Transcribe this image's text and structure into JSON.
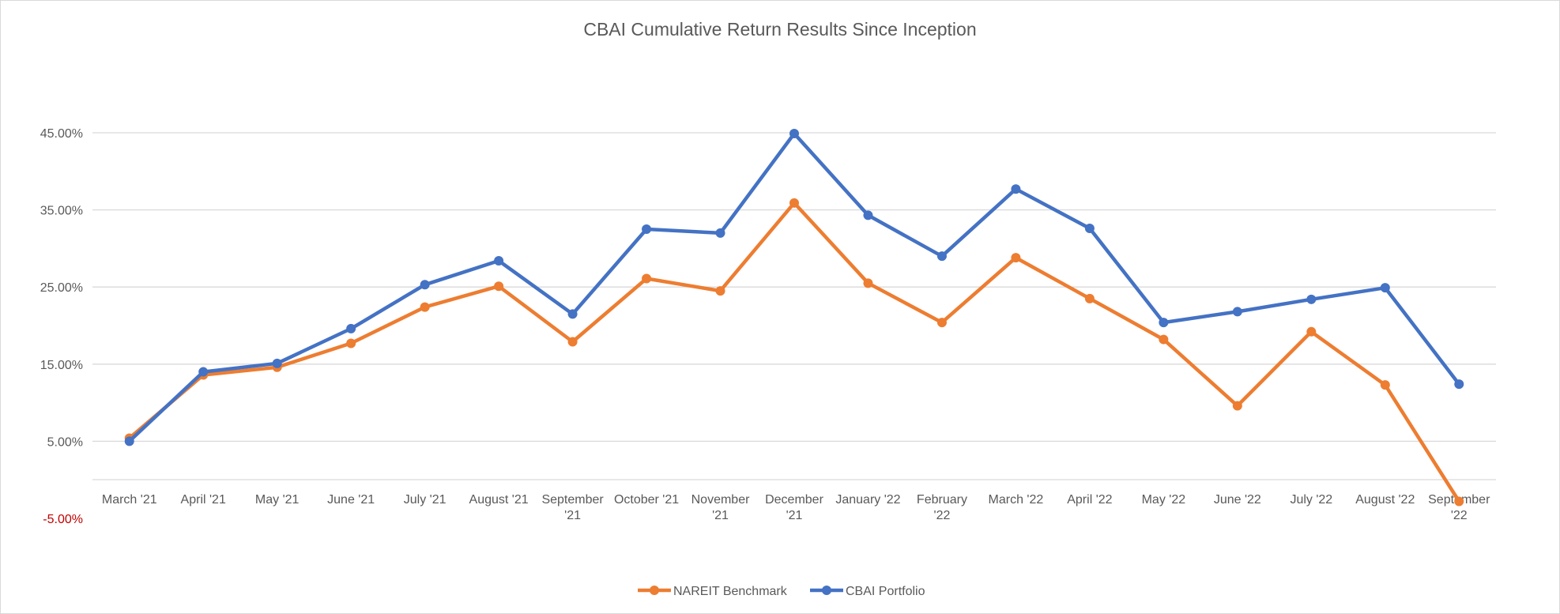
{
  "chart_data": {
    "type": "line",
    "title": "CBAI Cumulative Return Results Since Inception",
    "xlabel": "",
    "ylabel": "",
    "categories": [
      [
        "March '21"
      ],
      [
        "April '21"
      ],
      [
        "May '21"
      ],
      [
        "June '21"
      ],
      [
        "July '21"
      ],
      [
        "August '21"
      ],
      [
        "September",
        "'21"
      ],
      [
        "October '21"
      ],
      [
        "November",
        "'21"
      ],
      [
        "December",
        "'21"
      ],
      [
        "January '22"
      ],
      [
        "February",
        "'22"
      ],
      [
        "March '22"
      ],
      [
        "April '22"
      ],
      [
        "May '22"
      ],
      [
        "June '22"
      ],
      [
        "July '22"
      ],
      [
        "August '22"
      ],
      [
        "September",
        "'22"
      ]
    ],
    "yticks": [
      -5,
      5,
      15,
      25,
      35,
      45
    ],
    "ytick_labels": [
      "-5.00%",
      "5.00%",
      "15.00%",
      "25.00%",
      "35.00%",
      "45.00%"
    ],
    "ylim": [
      -5,
      45
    ],
    "grid": true,
    "legend_position": "bottom",
    "series": [
      {
        "name": "NAREIT Benchmark",
        "color": "#ed7d31",
        "values": [
          5.4,
          13.6,
          14.6,
          17.7,
          22.4,
          25.1,
          17.9,
          26.1,
          24.5,
          35.9,
          25.5,
          20.4,
          28.8,
          23.5,
          18.2,
          9.6,
          19.2,
          12.3,
          -2.8
        ]
      },
      {
        "name": "CBAI Portfolio",
        "color": "#4472c4",
        "values": [
          5.0,
          14.0,
          15.1,
          19.6,
          25.3,
          28.4,
          21.5,
          32.5,
          32.0,
          44.9,
          34.3,
          29.0,
          37.7,
          32.6,
          20.4,
          21.8,
          23.4,
          24.9,
          12.4
        ]
      }
    ],
    "colors": {
      "negative_tick": "#c00000",
      "grid": "#d9d9d9",
      "text": "#595959"
    }
  }
}
